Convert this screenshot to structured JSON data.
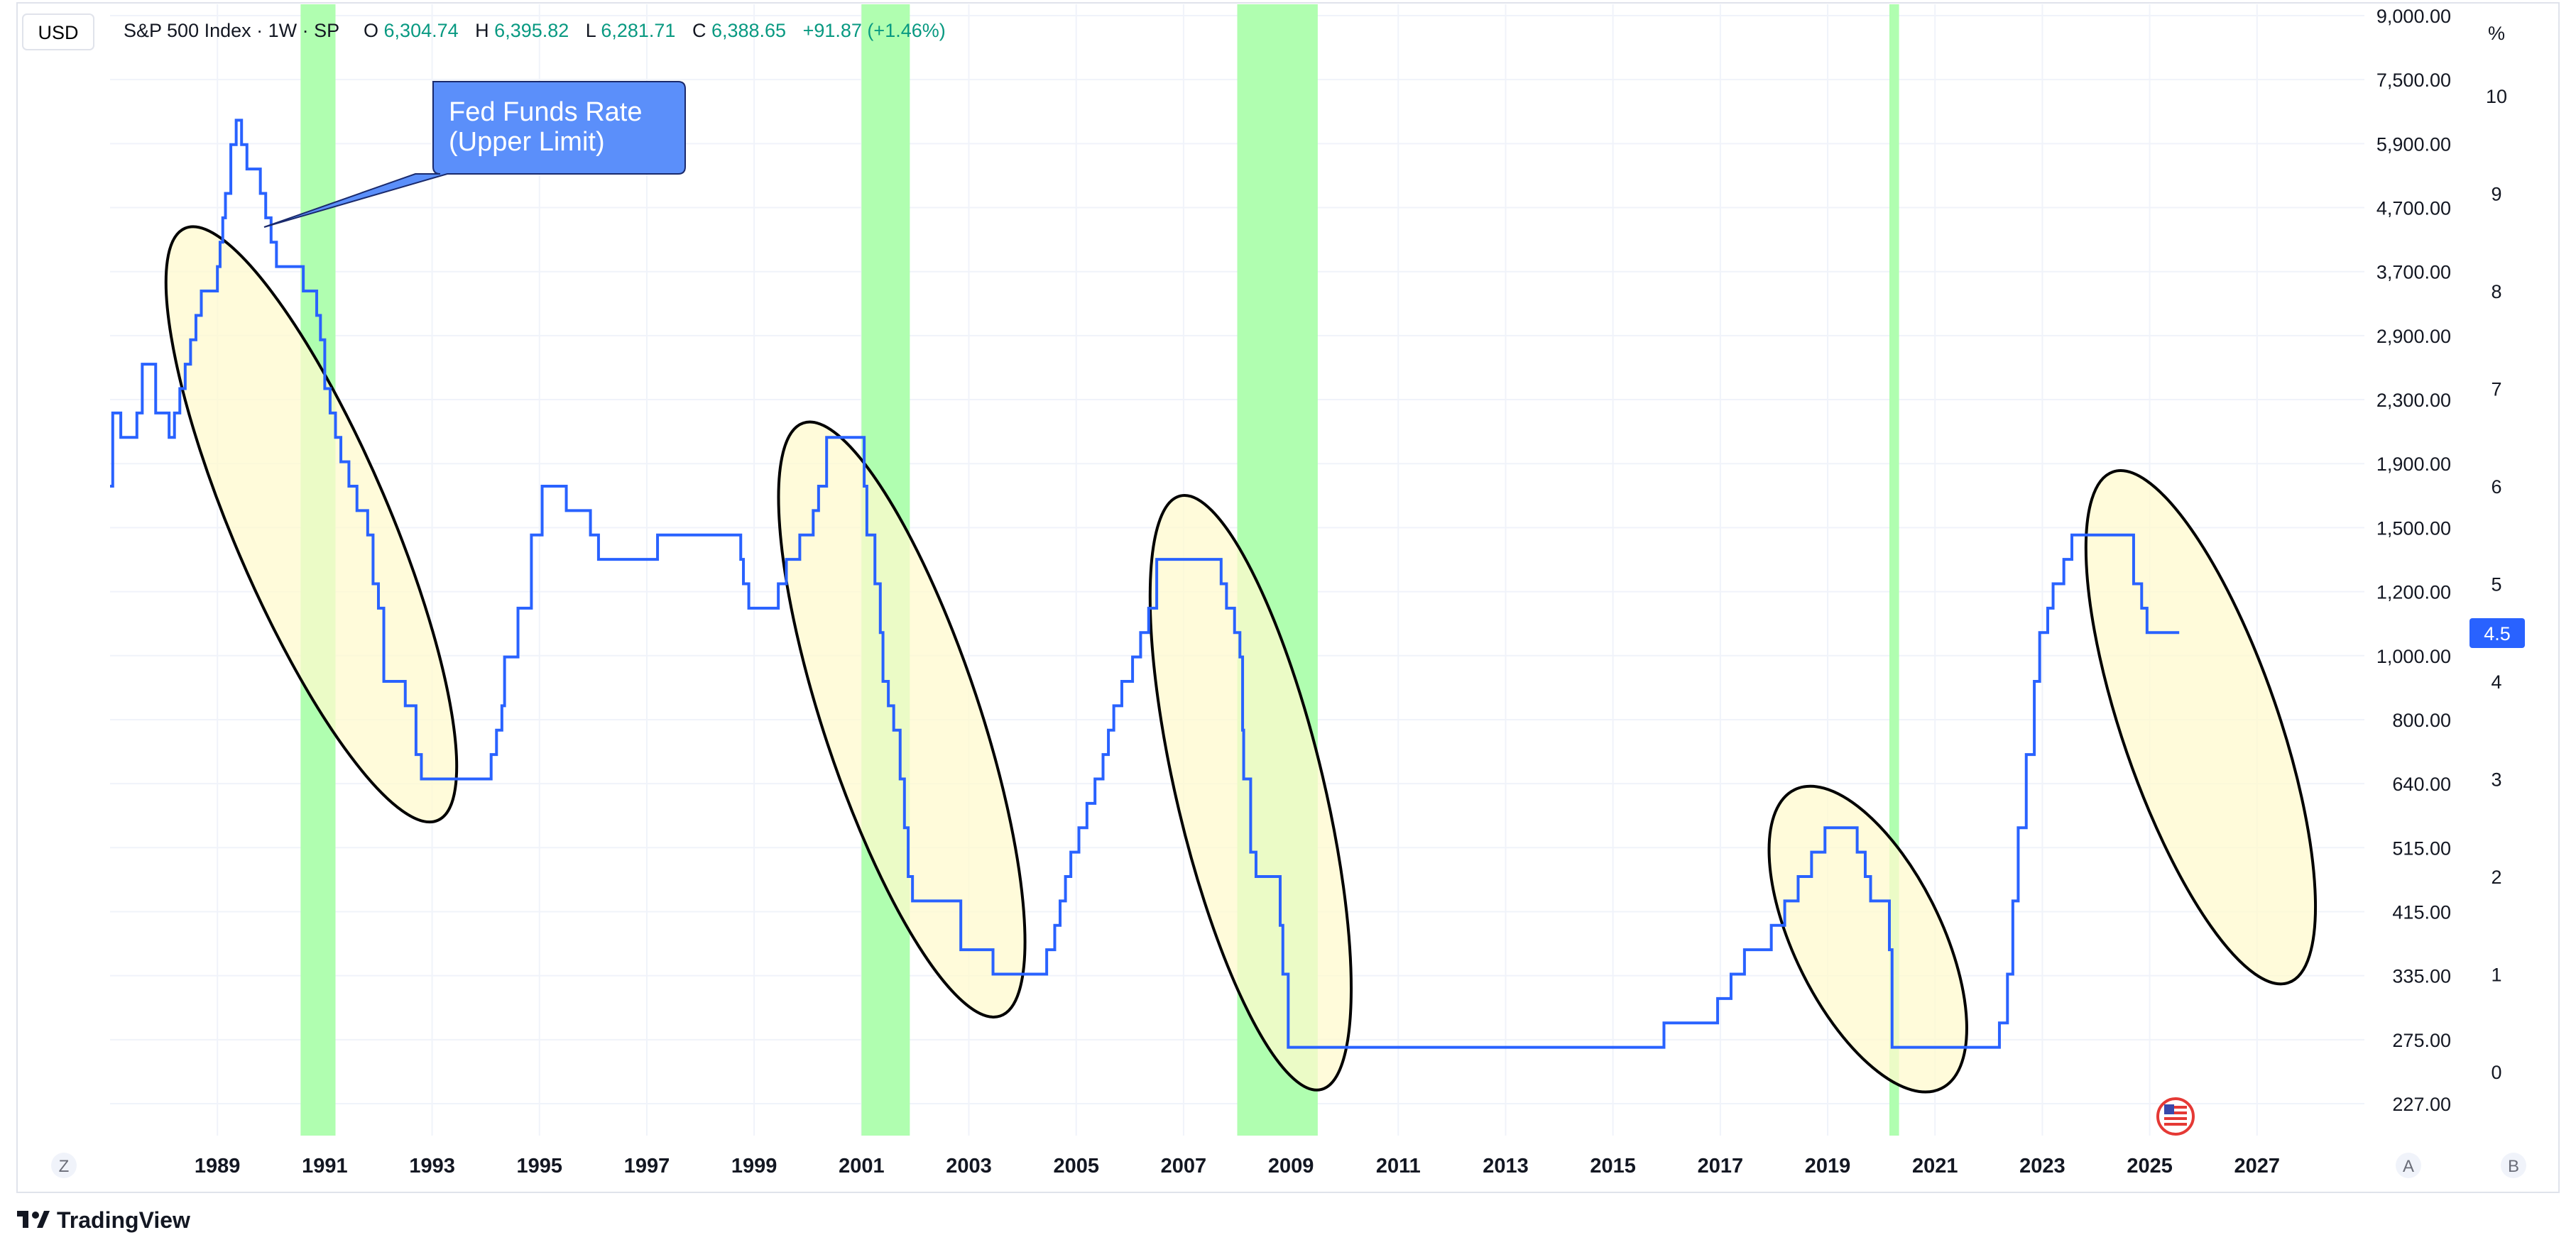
{
  "header": {
    "currency_button": "USD",
    "symbol": "S&P 500 Index · 1W · SP",
    "open_label": "O",
    "open_value": "6,304.74",
    "high_label": "H",
    "high_value": "6,395.82",
    "low_label": "L",
    "low_value": "6,281.71",
    "close_label": "C",
    "close_value": "6,388.65",
    "change": "+91.87 (+1.46%)"
  },
  "colors": {
    "line": "#2962ff",
    "recession_band": "#b0feb0",
    "ellipse_fill": "#fffacd",
    "ellipse_stroke": "#000000",
    "callout_fill": "#5b8ffa",
    "price_label_bg": "#2962ff",
    "ohlc_value": "#089981"
  },
  "annotation": {
    "callout_line1": "Fed Funds Rate",
    "callout_line2": "(Upper Limit)"
  },
  "price_label": "4.5",
  "bottom_buttons": {
    "z": "Z",
    "a": "A",
    "b": "B"
  },
  "branding": {
    "logo_text": "TradingView",
    "flag_icon": "us-flag-icon"
  },
  "chart_data": {
    "type": "line",
    "series": [
      {
        "name": "Fed Funds Rate (Upper Limit)",
        "points": [
          [
            1987.0,
            6.0
          ],
          [
            1987.05,
            6.75
          ],
          [
            1987.2,
            6.5
          ],
          [
            1987.5,
            6.75
          ],
          [
            1987.6,
            7.25
          ],
          [
            1987.85,
            6.75
          ],
          [
            1988.1,
            6.5
          ],
          [
            1988.2,
            6.75
          ],
          [
            1988.3,
            7.0
          ],
          [
            1988.4,
            7.25
          ],
          [
            1988.5,
            7.5
          ],
          [
            1988.6,
            7.75
          ],
          [
            1988.7,
            8.0
          ],
          [
            1989.0,
            8.25
          ],
          [
            1989.05,
            8.5
          ],
          [
            1989.1,
            8.75
          ],
          [
            1989.15,
            9.0
          ],
          [
            1989.25,
            9.5
          ],
          [
            1989.35,
            9.75
          ],
          [
            1989.45,
            9.5
          ],
          [
            1989.55,
            9.25
          ],
          [
            1989.8,
            9.0
          ],
          [
            1989.9,
            8.75
          ],
          [
            1990.0,
            8.5
          ],
          [
            1990.1,
            8.25
          ],
          [
            1990.6,
            8.0
          ],
          [
            1990.85,
            7.75
          ],
          [
            1990.92,
            7.5
          ],
          [
            1991.0,
            7.0
          ],
          [
            1991.1,
            6.75
          ],
          [
            1991.2,
            6.5
          ],
          [
            1991.3,
            6.25
          ],
          [
            1991.45,
            6.0
          ],
          [
            1991.6,
            5.75
          ],
          [
            1991.8,
            5.5
          ],
          [
            1991.9,
            5.0
          ],
          [
            1992.0,
            4.75
          ],
          [
            1992.1,
            4.0
          ],
          [
            1992.5,
            3.75
          ],
          [
            1992.7,
            3.25
          ],
          [
            1992.8,
            3.0
          ],
          [
            1994.1,
            3.25
          ],
          [
            1994.2,
            3.5
          ],
          [
            1994.3,
            3.75
          ],
          [
            1994.35,
            4.25
          ],
          [
            1994.6,
            4.75
          ],
          [
            1994.85,
            5.5
          ],
          [
            1995.05,
            6.0
          ],
          [
            1995.5,
            5.75
          ],
          [
            1995.95,
            5.5
          ],
          [
            1996.1,
            5.25
          ],
          [
            1997.2,
            5.5
          ],
          [
            1998.75,
            5.25
          ],
          [
            1998.8,
            5.0
          ],
          [
            1998.9,
            4.75
          ],
          [
            1999.45,
            5.0
          ],
          [
            1999.6,
            5.25
          ],
          [
            1999.85,
            5.5
          ],
          [
            2000.1,
            5.75
          ],
          [
            2000.2,
            6.0
          ],
          [
            2000.35,
            6.5
          ],
          [
            2001.05,
            6.0
          ],
          [
            2001.1,
            5.5
          ],
          [
            2001.25,
            5.0
          ],
          [
            2001.35,
            4.5
          ],
          [
            2001.4,
            4.0
          ],
          [
            2001.5,
            3.75
          ],
          [
            2001.6,
            3.5
          ],
          [
            2001.72,
            3.0
          ],
          [
            2001.8,
            2.5
          ],
          [
            2001.87,
            2.0
          ],
          [
            2001.95,
            1.75
          ],
          [
            2002.85,
            1.25
          ],
          [
            2003.45,
            1.0
          ],
          [
            2004.45,
            1.25
          ],
          [
            2004.6,
            1.5
          ],
          [
            2004.7,
            1.75
          ],
          [
            2004.8,
            2.0
          ],
          [
            2004.9,
            2.25
          ],
          [
            2005.05,
            2.5
          ],
          [
            2005.2,
            2.75
          ],
          [
            2005.35,
            3.0
          ],
          [
            2005.5,
            3.25
          ],
          [
            2005.6,
            3.5
          ],
          [
            2005.7,
            3.75
          ],
          [
            2005.85,
            4.0
          ],
          [
            2006.05,
            4.25
          ],
          [
            2006.2,
            4.5
          ],
          [
            2006.35,
            4.75
          ],
          [
            2006.5,
            5.0
          ],
          [
            2006.5,
            5.25
          ],
          [
            2007.7,
            5.0
          ],
          [
            2007.8,
            4.75
          ],
          [
            2007.95,
            4.5
          ],
          [
            2008.05,
            4.25
          ],
          [
            2008.1,
            3.5
          ],
          [
            2008.12,
            3.0
          ],
          [
            2008.25,
            2.25
          ],
          [
            2008.35,
            2.0
          ],
          [
            2008.8,
            1.5
          ],
          [
            2008.85,
            1.0
          ],
          [
            2008.95,
            0.25
          ],
          [
            2015.95,
            0.5
          ],
          [
            2016.95,
            0.75
          ],
          [
            2017.2,
            1.0
          ],
          [
            2017.45,
            1.25
          ],
          [
            2017.95,
            1.5
          ],
          [
            2018.2,
            1.75
          ],
          [
            2018.45,
            2.0
          ],
          [
            2018.7,
            2.25
          ],
          [
            2018.95,
            2.5
          ],
          [
            2019.55,
            2.25
          ],
          [
            2019.7,
            2.0
          ],
          [
            2019.8,
            1.75
          ],
          [
            2020.15,
            1.25
          ],
          [
            2020.2,
            0.25
          ],
          [
            2022.2,
            0.5
          ],
          [
            2022.35,
            1.0
          ],
          [
            2022.45,
            1.75
          ],
          [
            2022.55,
            2.5
          ],
          [
            2022.7,
            3.25
          ],
          [
            2022.85,
            4.0
          ],
          [
            2022.95,
            4.5
          ],
          [
            2023.1,
            4.75
          ],
          [
            2023.2,
            5.0
          ],
          [
            2023.4,
            5.25
          ],
          [
            2023.55,
            5.5
          ],
          [
            2024.7,
            5.0
          ],
          [
            2024.85,
            4.75
          ],
          [
            2024.95,
            4.5
          ],
          [
            2025.55,
            4.5
          ]
        ]
      }
    ],
    "recession_bands": [
      [
        1990.55,
        1991.2
      ],
      [
        2001.0,
        2001.9
      ],
      [
        2008.0,
        2009.5
      ],
      [
        2020.15,
        2020.33
      ]
    ],
    "highlighted_periods": [
      {
        "start": 1988.5,
        "end": 1993.0
      },
      {
        "start": 2000.0,
        "end": 2003.5
      },
      {
        "start": 2007.0,
        "end": 2009.5
      },
      {
        "start": 2018.5,
        "end": 2021.0
      },
      {
        "start": 2024.4,
        "end": 2027.5
      }
    ],
    "x_ticks": [
      "1989",
      "1991",
      "1993",
      "1995",
      "1997",
      "1999",
      "2001",
      "2003",
      "2005",
      "2007",
      "2009",
      "2011",
      "2013",
      "2015",
      "2017",
      "2019",
      "2021",
      "2023",
      "2025",
      "2027"
    ],
    "x_tick_values": [
      1989,
      1991,
      1993,
      1995,
      1997,
      1999,
      2001,
      2003,
      2005,
      2007,
      2009,
      2011,
      2013,
      2015,
      2017,
      2019,
      2021,
      2023,
      2025,
      2027
    ],
    "xlim": [
      1987.0,
      2029.0
    ],
    "right_axis_unit": "%",
    "right_axis_ticks": [
      "10",
      "9",
      "8",
      "7",
      "6",
      "5",
      "4",
      "3",
      "2",
      "1",
      "0"
    ],
    "right_axis_values": [
      10,
      9,
      8,
      7,
      6,
      5,
      4,
      3,
      2,
      1,
      0
    ],
    "left_price_ticks": [
      "9,000.00",
      "7,500.00",
      "5,900.00",
      "4,700.00",
      "3,700.00",
      "2,900.00",
      "2,300.00",
      "1,900.00",
      "1,500.00",
      "1,200.00",
      "1,000.00",
      "800.00",
      "640.00",
      "515.00",
      "415.00",
      "335.00",
      "275.00",
      "227.00"
    ],
    "grid": true,
    "legend": "none"
  }
}
